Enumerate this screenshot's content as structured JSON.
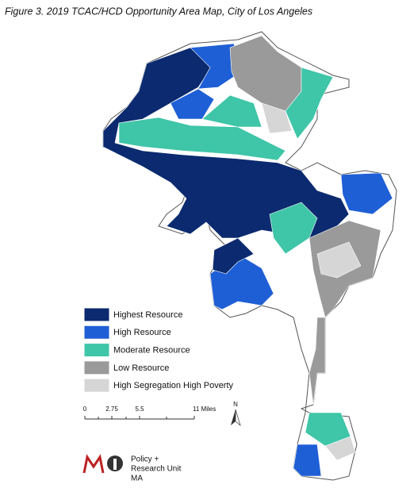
{
  "title": "Figure 3. 2019 TCAC/HCD Opportunity Area Map, City of Los Angeles",
  "legend": [
    {
      "label": "Highest Resource",
      "color": "#0b2a6f"
    },
    {
      "label": "High Resource",
      "color": "#1f5fd6"
    },
    {
      "label": "Moderate Resource",
      "color": "#3fc5a8"
    },
    {
      "label": "Low Resource",
      "color": "#9a9a9a"
    },
    {
      "label": "High Segregation High Poverty",
      "color": "#d6d6d6"
    }
  ],
  "scale_bar": {
    "labels": [
      "0",
      "2.75",
      "5.5",
      "11 Miles"
    ]
  },
  "north_arrow": "N",
  "logo": {
    "lines": [
      "Policy +",
      "Research Unit",
      "MA"
    ]
  }
}
